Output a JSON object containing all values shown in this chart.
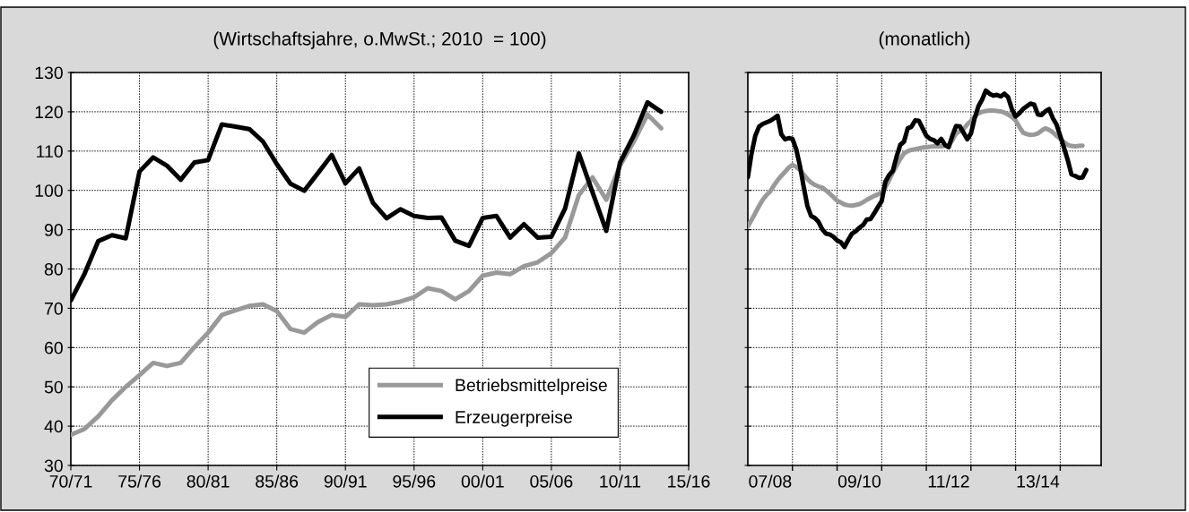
{
  "chart_data": [
    {
      "type": "line",
      "title": "(Wirtschaftsjahre, o.MwSt.; 2010  = 100)",
      "categories": [
        "70/71",
        null,
        null,
        null,
        null,
        "75/76",
        null,
        null,
        null,
        null,
        "80/81",
        null,
        null,
        null,
        null,
        "85/86",
        null,
        null,
        null,
        null,
        "90/91",
        null,
        null,
        null,
        null,
        "95/96",
        null,
        null,
        null,
        null,
        "00/01",
        null,
        null,
        null,
        null,
        "05/06",
        null,
        null,
        null,
        null,
        "10/11",
        null,
        null,
        null,
        null,
        "15/16"
      ],
      "series": [
        {
          "name": "Betriebsmittelpreise",
          "color": "#999999",
          "values": [
            37.8,
            39.3,
            42.5,
            46.6,
            50.0,
            53.0,
            56.1,
            55.3,
            56.1,
            60.1,
            63.8,
            68.3,
            69.5,
            70.6,
            71.0,
            69.3,
            64.7,
            63.8,
            66.5,
            68.3,
            67.8,
            71.0,
            70.8,
            71.0,
            71.7,
            72.8,
            75.1,
            74.4,
            72.3,
            74.4,
            78.3,
            79.1,
            78.7,
            80.7,
            81.7,
            84.0,
            88.0,
            98.8,
            103.3,
            97.6,
            106.3,
            112.4,
            119.3,
            115.8,
            null,
            null
          ]
        },
        {
          "name": "Erzeugerpreise",
          "color": "#000000",
          "values": [
            72.0,
            78.8,
            87.1,
            88.6,
            87.8,
            104.8,
            108.4,
            106.3,
            102.7,
            107.1,
            107.7,
            116.8,
            116.2,
            115.6,
            112.4,
            106.7,
            101.7,
            99.9,
            104.4,
            109.0,
            101.8,
            105.6,
            96.9,
            92.9,
            95.2,
            93.5,
            93.0,
            93.1,
            87.2,
            85.9,
            93.0,
            93.5,
            88.0,
            91.4,
            88.0,
            88.2,
            95.4,
            109.4,
            99.5,
            89.7,
            107.1,
            113.9,
            122.4,
            120.0,
            null,
            null
          ]
        }
      ],
      "ylim": [
        30,
        130
      ],
      "yticks": [
        30,
        40,
        50,
        60,
        70,
        80,
        90,
        100,
        110,
        120,
        130
      ],
      "grid": true,
      "legend": "bottom right",
      "line_style": "solid",
      "marker": "none"
    },
    {
      "type": "line",
      "title": "(monatlich)",
      "categories": [
        null,
        null,
        null,
        null,
        null,
        null,
        "07/08",
        null,
        null,
        null,
        null,
        null,
        null,
        null,
        null,
        null,
        null,
        null,
        null,
        null,
        null,
        null,
        null,
        null,
        null,
        null,
        null,
        null,
        null,
        null,
        "09/10",
        null,
        null,
        null,
        null,
        null,
        null,
        null,
        null,
        null,
        null,
        null,
        null,
        null,
        null,
        null,
        null,
        null,
        null,
        null,
        null,
        null,
        null,
        null,
        "11/12",
        null,
        null,
        null,
        null,
        null,
        null,
        null,
        null,
        null,
        null,
        null,
        null,
        null,
        null,
        null,
        null,
        null,
        null,
        null,
        null,
        null,
        null,
        null,
        "13/14",
        null,
        null,
        null,
        null,
        null,
        null,
        null,
        null,
        null,
        null,
        null,
        null,
        null,
        null,
        null,
        null,
        null
      ],
      "series": [
        {
          "color": "#999999",
          "values": [
            90.8,
            92.5,
            94.2,
            96.0,
            97.6,
            98.8,
            99.7,
            101.2,
            102.6,
            103.7,
            104.7,
            105.8,
            106.5,
            106.0,
            105.2,
            104.0,
            102.9,
            102.0,
            101.4,
            101.0,
            100.7,
            100.0,
            99.2,
            98.3,
            97.4,
            96.9,
            96.4,
            96.2,
            96.1,
            96.3,
            96.5,
            97.0,
            97.6,
            98.1,
            98.6,
            99.0,
            99.5,
            100.8,
            102.6,
            104.6,
            106.3,
            108.0,
            109.4,
            110.0,
            110.3,
            110.5,
            110.7,
            110.9,
            111.0,
            111.1,
            111.2,
            111.2,
            111.2,
            111.3,
            111.4,
            112.8,
            114.5,
            115.1,
            115.6,
            116.8,
            117.7,
            118.8,
            119.6,
            120.0,
            120.2,
            120.3,
            120.3,
            120.2,
            120.1,
            119.8,
            119.3,
            118.7,
            117.8,
            116.2,
            114.7,
            114.3,
            114.1,
            114.2,
            114.5,
            115.2,
            115.8,
            115.4,
            114.8,
            113.9,
            113.1,
            112.3,
            111.6,
            111.3,
            111.2,
            111.3,
            111.4,
            null,
            null,
            null,
            null,
            null
          ]
        },
        {
          "color": "#000000",
          "values": [
            103.3,
            109.4,
            113.9,
            116.2,
            116.9,
            117.3,
            117.7,
            118.3,
            119.0,
            114.3,
            113.0,
            113.3,
            113.1,
            110.5,
            106.3,
            101.0,
            96.1,
            93.5,
            93.0,
            92.0,
            90.1,
            89.0,
            88.8,
            88.2,
            87.3,
            86.8,
            85.6,
            87.4,
            89.0,
            89.6,
            90.5,
            91.2,
            92.6,
            92.7,
            94.2,
            95.8,
            97.3,
            102.2,
            103.9,
            105.0,
            108.6,
            111.6,
            112.4,
            115.8,
            116.2,
            117.8,
            117.7,
            115.8,
            113.9,
            113.1,
            112.8,
            112.0,
            113.1,
            111.6,
            111.0,
            113.9,
            116.4,
            116.3,
            114.7,
            113.0,
            114.5,
            118.4,
            121.4,
            123.1,
            125.4,
            124.6,
            124.1,
            124.3,
            123.9,
            124.6,
            123.7,
            120.7,
            118.8,
            119.6,
            120.7,
            121.4,
            122.1,
            121.8,
            119.3,
            119.2,
            120.1,
            120.7,
            118.4,
            116.8,
            113.9,
            110.9,
            107.8,
            104.1,
            103.7,
            103.2,
            103.3,
            105.2,
            null,
            null,
            null,
            null
          ]
        }
      ],
      "ylim": [
        30,
        130
      ],
      "yticks": [
        30,
        40,
        50,
        60,
        70,
        80,
        90,
        100,
        110,
        120,
        130
      ],
      "tick_labels": "x",
      "grid": true,
      "line_style": "solid",
      "marker": "none"
    }
  ]
}
